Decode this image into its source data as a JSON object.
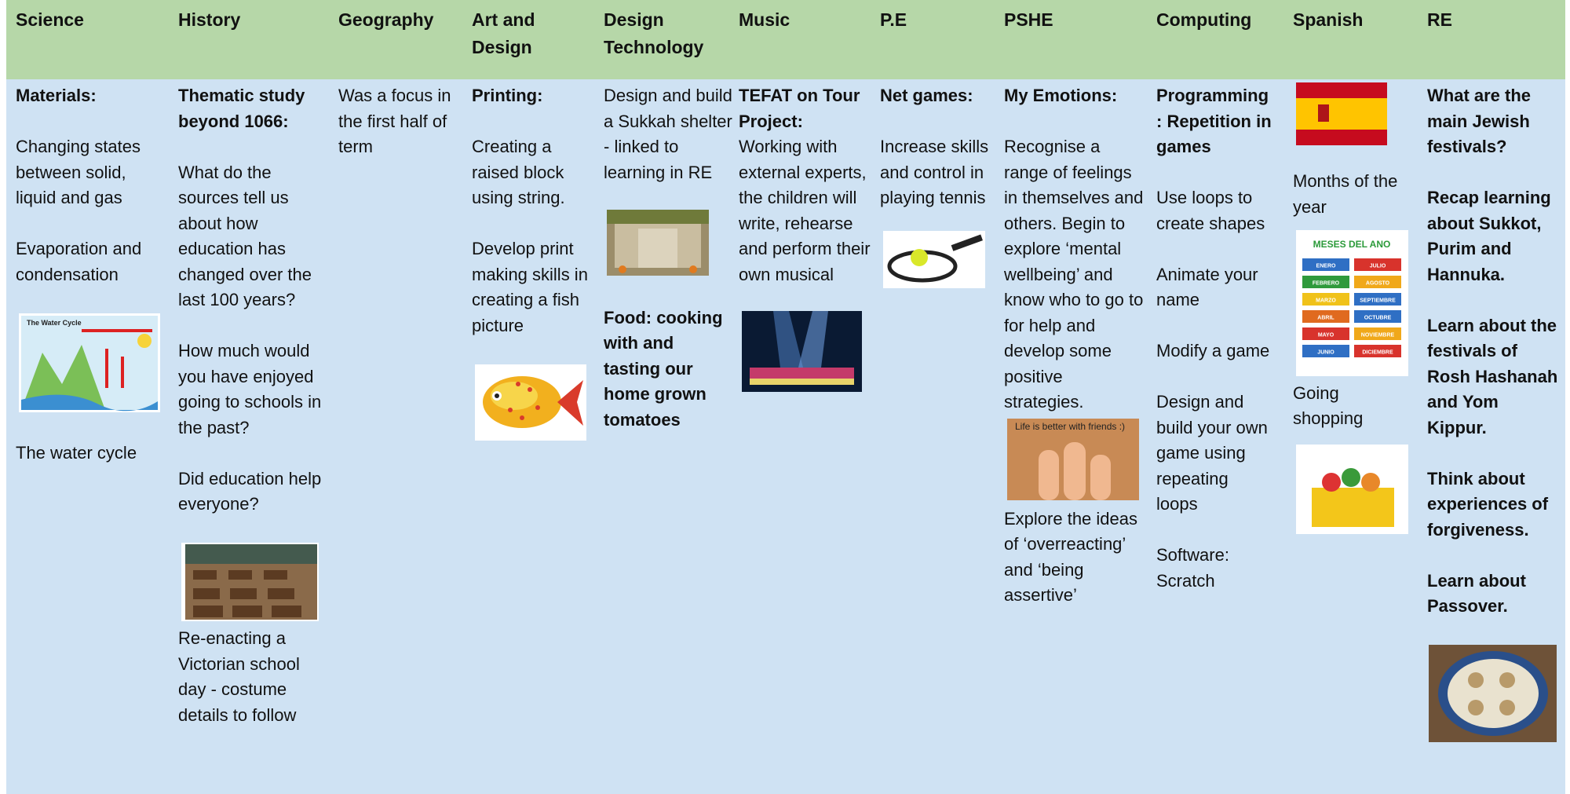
{
  "table": {
    "headers": [
      "Science",
      "History",
      "Geography",
      "Art and Design",
      "Design Technology",
      "Music",
      "P.E",
      "PSHE",
      "Computing",
      "Spanish",
      "RE"
    ],
    "cells": [
      [
        "Materials:",
        "Changing states between solid, liquid and gas",
        "Evaporation and condensation",
        "The water cycle"
      ],
      [
        "Thematic study beyond 1066:",
        "What do the sources tell us about how education has changed over the last 100 years?",
        "How much would you have enjoyed going to schools in the past?",
        "Did education help everyone?",
        "Re-enacting a Victorian school day - costume details to follow"
      ],
      [
        "Was a focus in the first half of term"
      ],
      [
        "Printing:",
        "Creating a raised block using string.",
        "Develop print making skills in creating a fish picture"
      ],
      [
        "Design and build a Sukkah shelter - linked to learning in RE",
        "Food: cooking with and tasting our home grown tomatoes"
      ],
      [
        "TEFAT on Tour Project:",
        "Working with external experts, the children will write, rehearse and perform their own musical"
      ],
      [
        "Net games:",
        "Increase skills and control in playing tennis"
      ],
      [
        "My Emotions:",
        "Recognise a range of feelings in themselves and others. Begin to explore ‘mental wellbeing’ and know who to go to for help and develop some positive strategies.",
        "Explore the ideas of ‘overreacting’ and ‘being assertive’"
      ],
      [
        "Programming: Repetition in games",
        "Use loops to create shapes",
        "Animate your name",
        "Modify a game",
        "Design and build your own game using repeating loops",
        "Software: Scratch"
      ],
      [
        "Months of the year",
        "Going shopping"
      ],
      [
        "What are the main Jewish festivals?",
        "Recap learning about Sukkot, Purim and Hannuka.",
        "Learn about the festivals of Rosh Hashanah and Yom Kippur.",
        "Think about experiences of forgiveness.",
        "Learn about Passover."
      ]
    ]
  },
  "images": {
    "water_cycle": {
      "title": "The Water Cycle"
    },
    "spanish_months": {
      "title": "MESES DEL ANO",
      "months": [
        "ENERO",
        "JULIO",
        "FEBRERO",
        "AGOSTO",
        "MARZO",
        "SEPTIEMBRE",
        "ABRIL",
        "OCTUBRE",
        "MAYO",
        "NOVIEMBRE",
        "JUNIO",
        "DICIEMBRE"
      ]
    },
    "pshe": {
      "caption": "Life is better with friends :)"
    }
  }
}
